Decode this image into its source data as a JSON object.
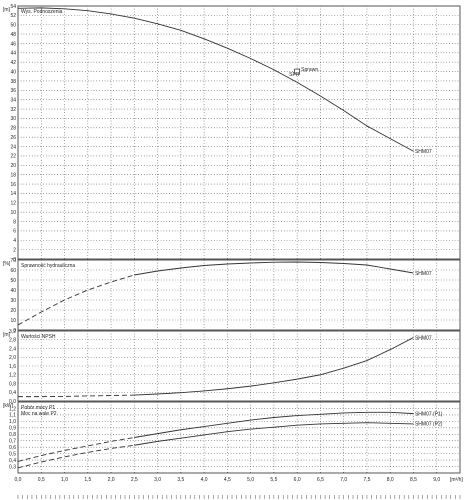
{
  "chart_data": [
    {
      "type": "line",
      "title": "Wys. Podnoszenia",
      "ylabel": "[m]",
      "ylim": [
        0,
        54
      ],
      "yticks": [
        0,
        2,
        4,
        6,
        8,
        10,
        12,
        14,
        16,
        18,
        20,
        22,
        24,
        26,
        28,
        30,
        32,
        34,
        36,
        38,
        40,
        42,
        44,
        46,
        48,
        50,
        52,
        54
      ],
      "xlim": [
        0,
        9.5
      ],
      "series": [
        {
          "name": "SHM07",
          "x": [
            0,
            0.5,
            1,
            1.5,
            2,
            2.5,
            3,
            3.5,
            4,
            4.5,
            5,
            5.5,
            6,
            6.5,
            7,
            7.5,
            8,
            8.5
          ],
          "values": [
            53.5,
            53.6,
            53.4,
            53.0,
            52.3,
            51.4,
            50.2,
            48.8,
            47.0,
            45.0,
            42.8,
            40.4,
            37.7,
            34.8,
            31.7,
            28.4,
            25.7,
            23.0
          ]
        }
      ],
      "annotations": [
        {
          "text": "Sprawn.",
          "x": 6.0,
          "y": 40.0
        },
        {
          "text": "SPR",
          "x": 6.0,
          "y": 40.0
        }
      ]
    },
    {
      "type": "line",
      "title": "Sprawność hydrauliczna",
      "ylabel": "[%]",
      "ylim": [
        0,
        70
      ],
      "yticks": [
        0,
        10,
        20,
        30,
        40,
        50,
        60,
        70
      ],
      "xlim": [
        0,
        9.5
      ],
      "series": [
        {
          "name": "SHM07",
          "x": [
            0,
            0.5,
            1,
            1.5,
            2,
            2.5,
            3,
            3.5,
            4,
            4.5,
            5,
            5.5,
            6,
            6.5,
            7,
            7.5,
            8,
            8.5
          ],
          "values": [
            5,
            18,
            30,
            40,
            48,
            55,
            59,
            62,
            64.5,
            66,
            67,
            67.8,
            68,
            67.5,
            66.5,
            65,
            61,
            57
          ],
          "dashed_until": 2.5
        }
      ]
    },
    {
      "type": "line",
      "title": "Wartości NPSH",
      "ylabel": "[m]",
      "ylim": [
        0,
        3.2
      ],
      "yticks": [
        0,
        0.4,
        0.8,
        1.2,
        1.6,
        2.0,
        2.4,
        2.8,
        3.2
      ],
      "xlim": [
        0,
        9.5
      ],
      "series": [
        {
          "name": "SHM07",
          "x": [
            0,
            0.5,
            1,
            1.5,
            2,
            2.5,
            3,
            3.5,
            4,
            4.5,
            5,
            5.5,
            6,
            6.5,
            7,
            7.5,
            8,
            8.5
          ],
          "values": [
            0.2,
            0.2,
            0.21,
            0.23,
            0.25,
            0.27,
            0.32,
            0.38,
            0.46,
            0.56,
            0.68,
            0.83,
            1.0,
            1.2,
            1.5,
            1.85,
            2.35,
            2.9
          ],
          "dashed_until": 2.5
        }
      ]
    },
    {
      "type": "line",
      "title": "Pobór mocy P1",
      "subtitle": "Moc na wale P2",
      "ylabel": "[kW]",
      "ylim": [
        0.2,
        1.3
      ],
      "yticks": [
        0.3,
        0.4,
        0.5,
        0.6,
        0.7,
        0.8,
        0.9,
        1.0,
        1.1,
        1.2
      ],
      "xlabel": "[m³/h]",
      "xlim": [
        0,
        9.5
      ],
      "xticks": [
        0,
        0.5,
        1.0,
        1.5,
        2.0,
        2.5,
        3.0,
        3.5,
        4.0,
        4.5,
        5.0,
        5.5,
        6.0,
        6.5,
        7.0,
        7.5,
        8.0,
        8.5,
        9.0
      ],
      "xticklabels": [
        "0,0",
        "0,5",
        "1,0",
        "1,5",
        "2,0",
        "2,5",
        "3,0",
        "3,5",
        "4,0",
        "4,5",
        "5,0",
        "5,5",
        "6,0",
        "6,5",
        "7,0",
        "7,5",
        "8,0",
        "8,5",
        "9,0"
      ],
      "series": [
        {
          "name": "SHM07 (P1)",
          "x": [
            0,
            0.5,
            1,
            1.5,
            2,
            2.5,
            3,
            3.5,
            4,
            4.5,
            5,
            5.5,
            6,
            6.5,
            7,
            7.5,
            8,
            8.5
          ],
          "values": [
            0.38,
            0.47,
            0.55,
            0.62,
            0.69,
            0.75,
            0.81,
            0.87,
            0.92,
            0.97,
            1.02,
            1.06,
            1.09,
            1.11,
            1.13,
            1.14,
            1.14,
            1.12
          ],
          "dashed_until": 2.5
        },
        {
          "name": "SHM07 (P2)",
          "x": [
            0,
            0.5,
            1,
            1.5,
            2,
            2.5,
            3,
            3.5,
            4,
            4.5,
            5,
            5.5,
            6,
            6.5,
            7,
            7.5,
            8,
            8.5
          ],
          "values": [
            0.28,
            0.37,
            0.45,
            0.52,
            0.58,
            0.63,
            0.69,
            0.74,
            0.79,
            0.84,
            0.88,
            0.91,
            0.94,
            0.96,
            0.97,
            0.98,
            0.97,
            0.96
          ],
          "dashed_until": 2.5
        }
      ]
    }
  ]
}
